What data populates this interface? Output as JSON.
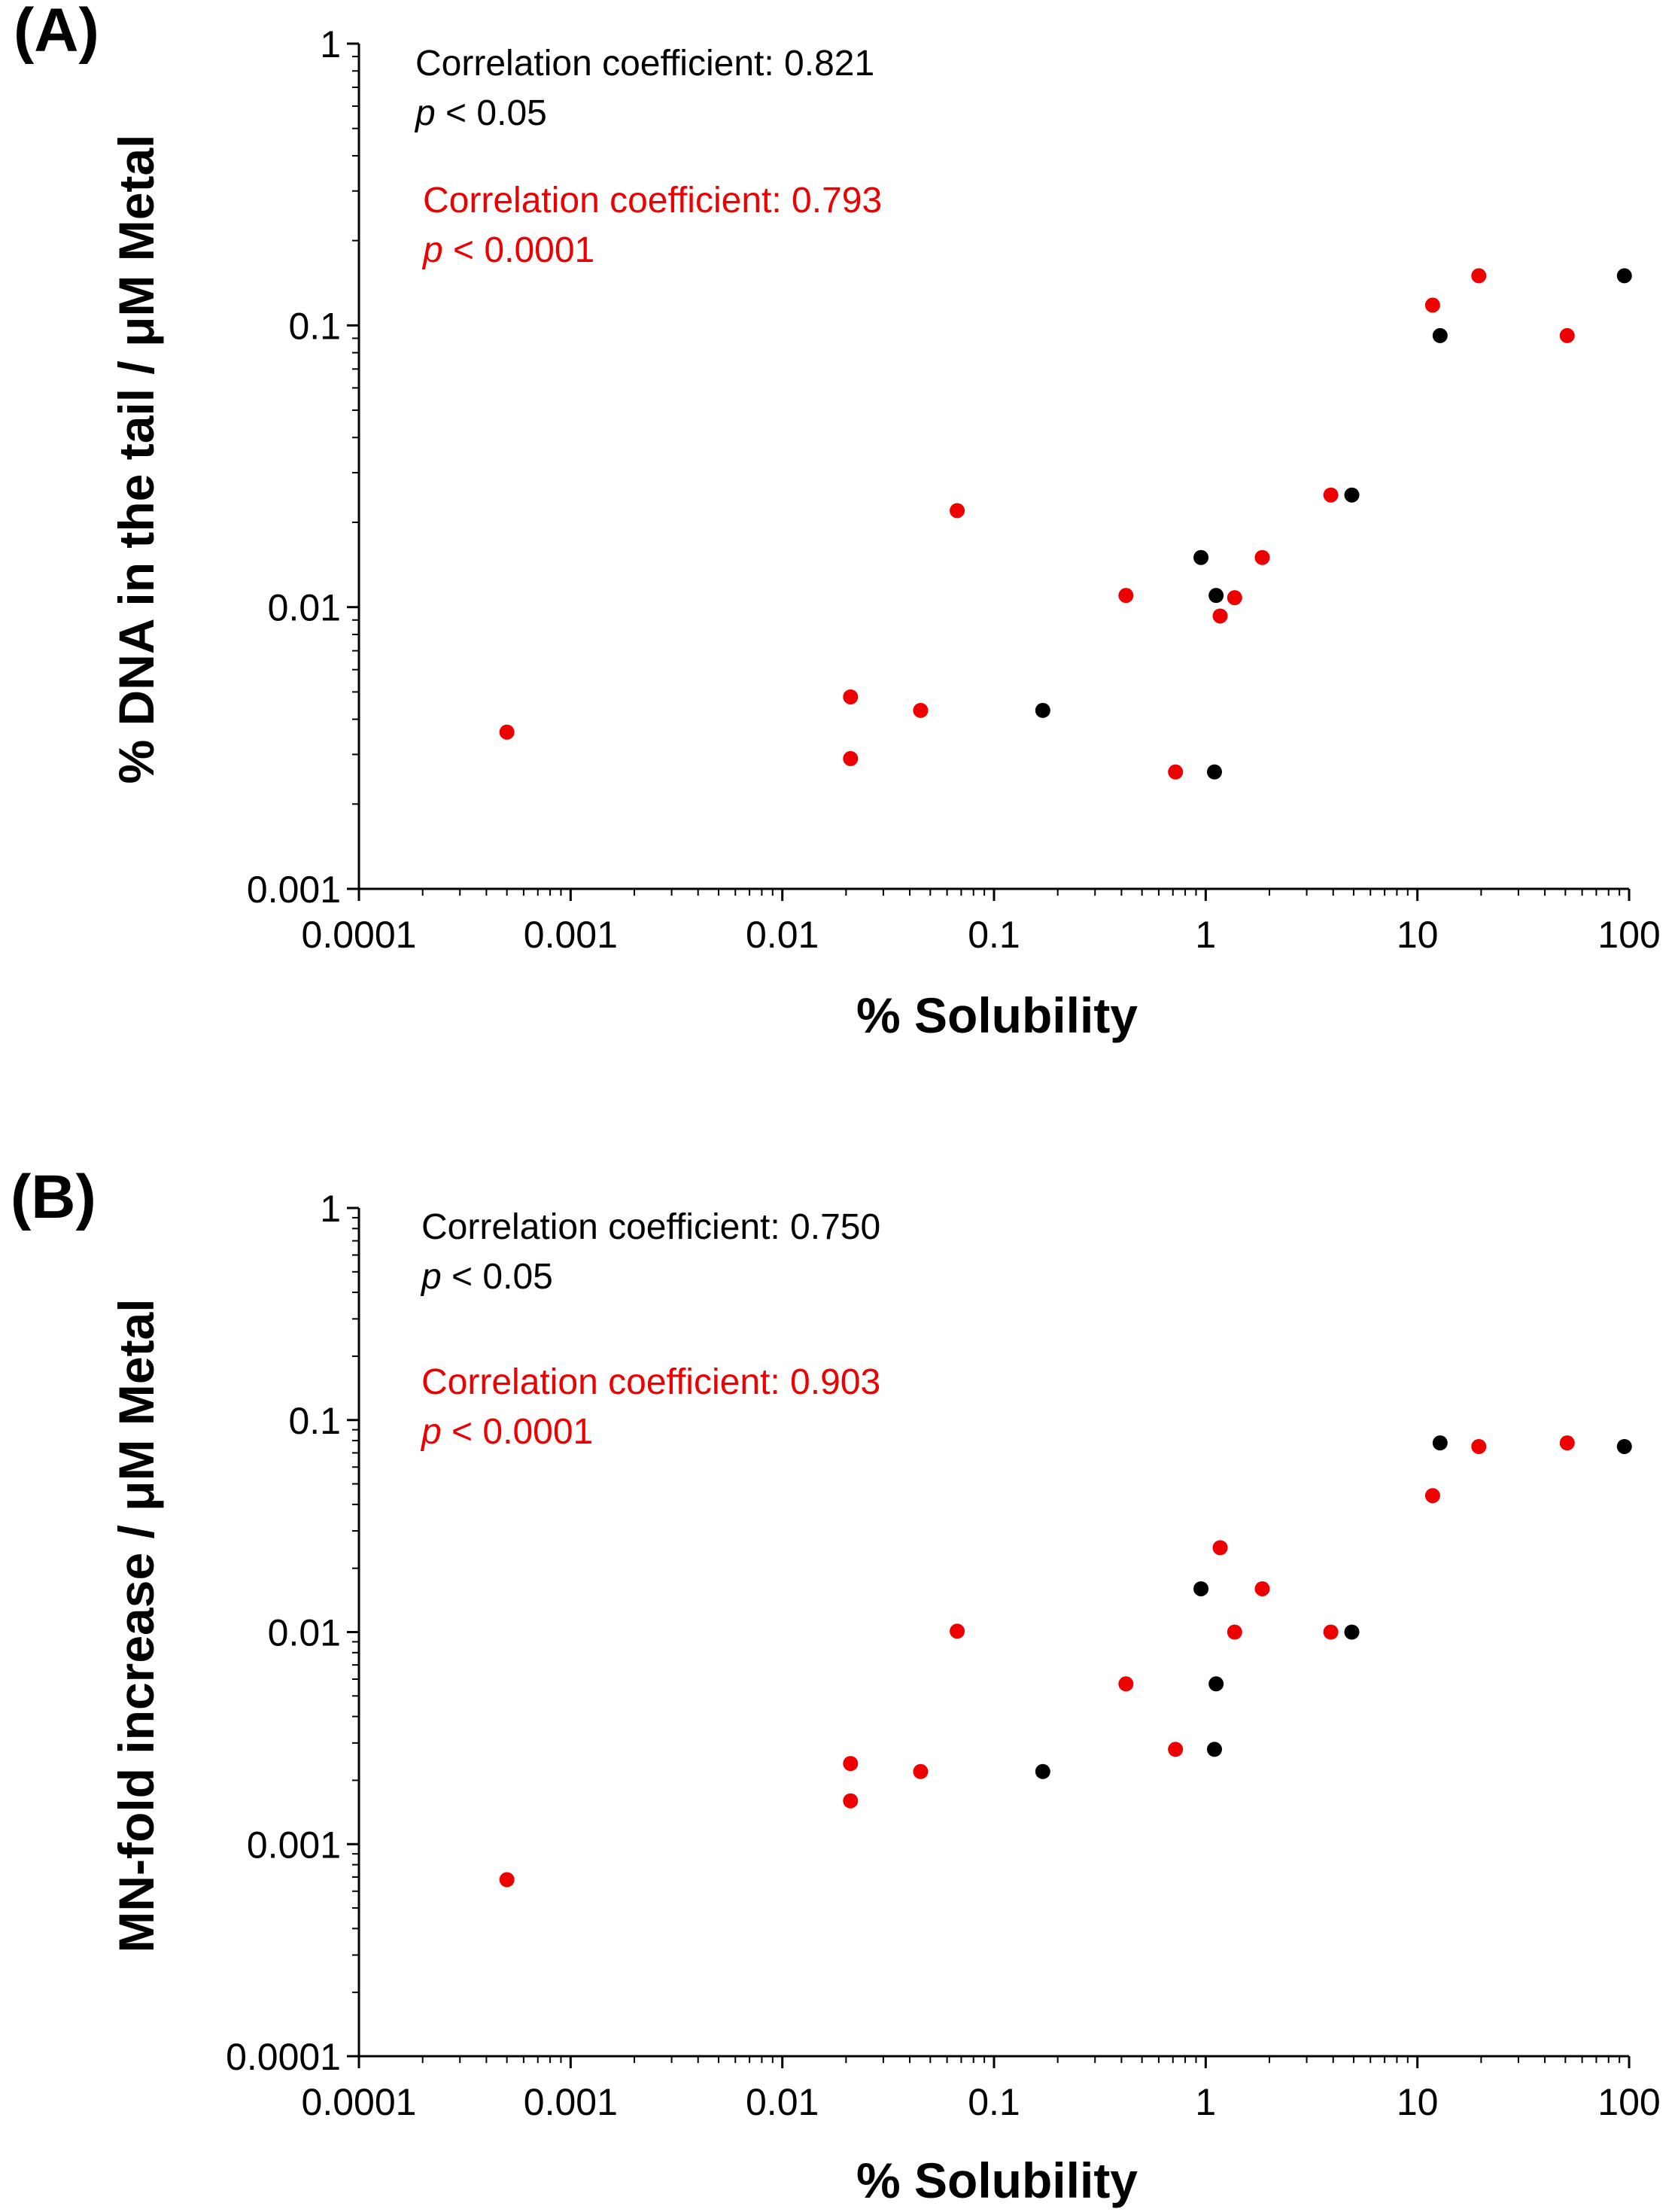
{
  "colors": {
    "series_a": "#000000",
    "series_b": "#ee0000"
  },
  "chart_data": [
    {
      "type": "scatter",
      "panel_label": "(A)",
      "title": "",
      "xlabel": "% Solubility",
      "ylabel": "% DNA in the tail / μM Metal",
      "xscale": "log",
      "yscale": "log",
      "xlim": [
        0.0001,
        100
      ],
      "ylim": [
        0.001,
        1
      ],
      "x_tick_labels": [
        "0.0001",
        "0.001",
        "0.01",
        "0.1",
        "1",
        "10",
        "100"
      ],
      "y_tick_labels": [
        "0.001",
        "0.01",
        "0.1",
        "1"
      ],
      "grid": false,
      "legend": "none",
      "annotations": [
        {
          "color": "series_a",
          "label": "Correlation coefficient: 0.821",
          "p_symbol": "p",
          "p_rest": " < 0.05"
        },
        {
          "color": "series_b",
          "label": "Correlation coefficient: 0.793",
          "p_symbol": "p",
          "p_rest": " < 0.0001"
        }
      ],
      "series": [
        {
          "color": "series_a",
          "points": [
            [
              0.17,
              0.0043
            ],
            [
              0.95,
              0.015
            ],
            [
              1.12,
              0.011
            ],
            [
              1.1,
              0.0026
            ],
            [
              4.9,
              0.025
            ],
            [
              12.8,
              0.092
            ],
            [
              95,
              0.15
            ]
          ]
        },
        {
          "color": "series_b",
          "points": [
            [
              0.0005,
              0.0036
            ],
            [
              0.021,
              0.0048
            ],
            [
              0.021,
              0.0029
            ],
            [
              0.045,
              0.0043
            ],
            [
              0.067,
              0.022
            ],
            [
              0.42,
              0.011
            ],
            [
              0.72,
              0.0026
            ],
            [
              1.17,
              0.0093
            ],
            [
              1.37,
              0.0108
            ],
            [
              1.85,
              0.015
            ],
            [
              3.9,
              0.025
            ],
            [
              11.8,
              0.118
            ],
            [
              19.5,
              0.15
            ],
            [
              51,
              0.092
            ]
          ]
        }
      ]
    },
    {
      "type": "scatter",
      "panel_label": "(B)",
      "title": "",
      "xlabel": "% Solubility",
      "ylabel": "MN-fold increase / μM Metal",
      "xscale": "log",
      "yscale": "log",
      "xlim": [
        0.0001,
        100
      ],
      "ylim": [
        0.0001,
        1
      ],
      "x_tick_labels": [
        "0.0001",
        "0.001",
        "0.01",
        "0.1",
        "1",
        "10",
        "100"
      ],
      "y_tick_labels": [
        "0.0001",
        "0.001",
        "0.01",
        "0.1",
        "1"
      ],
      "grid": false,
      "legend": "none",
      "annotations": [
        {
          "color": "series_a",
          "label": "Correlation coefficient: 0.750",
          "p_symbol": "p",
          "p_rest": " < 0.05"
        },
        {
          "color": "series_b",
          "label": "Correlation coefficient: 0.903",
          "p_symbol": "p",
          "p_rest": " < 0.0001"
        }
      ],
      "series": [
        {
          "color": "series_a",
          "points": [
            [
              0.17,
              0.0022
            ],
            [
              0.95,
              0.016
            ],
            [
              1.12,
              0.0057
            ],
            [
              1.1,
              0.0028
            ],
            [
              4.9,
              0.01
            ],
            [
              12.8,
              0.078
            ],
            [
              95,
              0.075
            ]
          ]
        },
        {
          "color": "series_b",
          "points": [
            [
              0.0005,
              0.00068
            ],
            [
              0.021,
              0.0024
            ],
            [
              0.021,
              0.0016
            ],
            [
              0.045,
              0.0022
            ],
            [
              0.067,
              0.0101
            ],
            [
              0.42,
              0.0057
            ],
            [
              0.72,
              0.0028
            ],
            [
              1.17,
              0.025
            ],
            [
              1.37,
              0.01
            ],
            [
              1.85,
              0.016
            ],
            [
              3.9,
              0.01
            ],
            [
              11.8,
              0.044
            ],
            [
              19.5,
              0.075
            ],
            [
              51,
              0.078
            ]
          ]
        }
      ]
    }
  ]
}
